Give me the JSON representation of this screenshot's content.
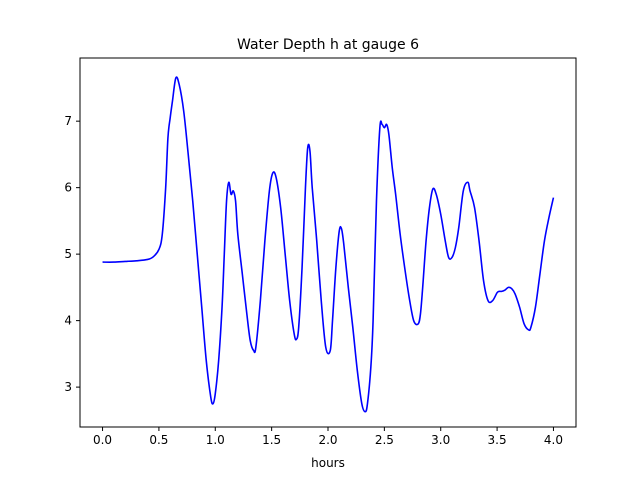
{
  "chart_data": {
    "type": "line",
    "title": "Water Depth h at gauge 6",
    "xlabel": "hours",
    "ylabel": "",
    "xlim": [
      -0.2,
      4.2
    ],
    "ylim": [
      2.4,
      7.95
    ],
    "xticks": [
      0.0,
      0.5,
      1.0,
      1.5,
      2.0,
      2.5,
      3.0,
      3.5,
      4.0
    ],
    "xtick_labels": [
      "0.0",
      "0.5",
      "1.0",
      "1.5",
      "2.0",
      "2.5",
      "3.0",
      "3.5",
      "4.0"
    ],
    "yticks": [
      3,
      4,
      5,
      6,
      7
    ],
    "ytick_labels": [
      "3",
      "4",
      "5",
      "6",
      "7"
    ],
    "grid": false,
    "series": [
      {
        "color": "#0000ff",
        "x": [
          0.0,
          0.1,
          0.2,
          0.3,
          0.4,
          0.45,
          0.5,
          0.53,
          0.56,
          0.58,
          0.6,
          0.62,
          0.65,
          0.68,
          0.72,
          0.76,
          0.8,
          0.84,
          0.88,
          0.92,
          0.96,
          0.98,
          1.0,
          1.03,
          1.06,
          1.08,
          1.1,
          1.12,
          1.14,
          1.16,
          1.18,
          1.2,
          1.24,
          1.28,
          1.31,
          1.34,
          1.36,
          1.4,
          1.44,
          1.48,
          1.51,
          1.54,
          1.58,
          1.62,
          1.66,
          1.7,
          1.72,
          1.74,
          1.77,
          1.8,
          1.82,
          1.84,
          1.86,
          1.9,
          1.94,
          1.98,
          2.02,
          2.04,
          2.07,
          2.1,
          2.12,
          2.14,
          2.18,
          2.22,
          2.26,
          2.3,
          2.33,
          2.35,
          2.38,
          2.4,
          2.43,
          2.46,
          2.48,
          2.5,
          2.52,
          2.54,
          2.57,
          2.6,
          2.64,
          2.68,
          2.72,
          2.76,
          2.8,
          2.82,
          2.84,
          2.87,
          2.9,
          2.93,
          2.96,
          3.0,
          3.04,
          3.07,
          3.1,
          3.13,
          3.16,
          3.2,
          3.24,
          3.26,
          3.3,
          3.34,
          3.38,
          3.42,
          3.46,
          3.5,
          3.52,
          3.54,
          3.57,
          3.6,
          3.63,
          3.66,
          3.7,
          3.74,
          3.78,
          3.8,
          3.84,
          3.88,
          3.92,
          3.96,
          4.0
        ],
        "values": [
          4.88,
          4.88,
          4.89,
          4.9,
          4.92,
          4.96,
          5.07,
          5.3,
          6.0,
          6.75,
          7.05,
          7.3,
          7.65,
          7.55,
          7.15,
          6.5,
          5.8,
          5.0,
          4.2,
          3.4,
          2.85,
          2.75,
          2.9,
          3.4,
          4.2,
          5.0,
          5.8,
          6.08,
          5.9,
          5.95,
          5.8,
          5.3,
          4.7,
          4.1,
          3.7,
          3.55,
          3.6,
          4.3,
          5.2,
          5.95,
          6.22,
          6.15,
          5.7,
          5.0,
          4.3,
          3.8,
          3.72,
          3.9,
          4.8,
          6.0,
          6.6,
          6.55,
          6.0,
          5.2,
          4.3,
          3.6,
          3.55,
          4.0,
          4.8,
          5.35,
          5.38,
          5.15,
          4.5,
          3.9,
          3.25,
          2.75,
          2.63,
          2.75,
          3.3,
          4.0,
          5.8,
          6.9,
          6.95,
          6.9,
          6.95,
          6.8,
          6.3,
          5.9,
          5.3,
          4.8,
          4.35,
          4.0,
          3.95,
          4.1,
          4.5,
          5.2,
          5.7,
          5.98,
          5.9,
          5.6,
          5.2,
          4.95,
          4.95,
          5.1,
          5.4,
          5.95,
          6.08,
          5.95,
          5.7,
          5.2,
          4.6,
          4.3,
          4.3,
          4.42,
          4.44,
          4.44,
          4.46,
          4.5,
          4.48,
          4.4,
          4.2,
          3.95,
          3.86,
          3.9,
          4.2,
          4.7,
          5.2,
          5.55,
          5.85
        ]
      }
    ]
  }
}
